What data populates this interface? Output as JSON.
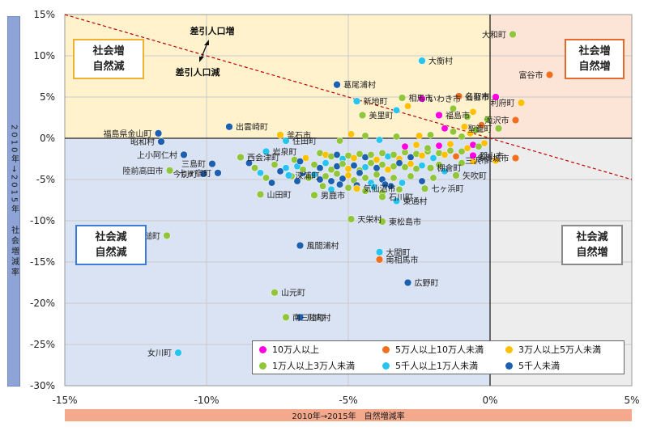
{
  "chart_data": {
    "type": "scatter",
    "xlabel": "2010年→2015年　自然増減率",
    "ylabel": "2010年→2015年　社会増減率",
    "xlim": [
      -15,
      5
    ],
    "ylim": [
      -30,
      15
    ],
    "x_ticks": [
      "-15%",
      "-10%",
      "-5%",
      "0%",
      "5%"
    ],
    "y_ticks": [
      "15%",
      "10%",
      "5%",
      "0%",
      "-5%",
      "-10%",
      "-15%",
      "-20%",
      "-25%",
      "-30%"
    ],
    "quadrants": {
      "top_left": "社会増\n自然減",
      "top_right": "社会増\n自然増",
      "bottom_left": "社会減\n自然減",
      "bottom_right": "社会減\n自然増"
    },
    "trend_annotation": {
      "upper": "差引人口増",
      "lower": "差引人口減"
    },
    "legend": [
      {
        "name": "10万人以上",
        "color": "#ff00e0"
      },
      {
        "name": "5万人以上10万人未満",
        "color": "#f07020"
      },
      {
        "name": "3万人以上5万人未満",
        "color": "#ffc000"
      },
      {
        "name": "1万人以上3万人未満",
        "color": "#92c63a"
      },
      {
        "name": "5千人以上1万人未満",
        "color": "#28c4f0"
      },
      {
        "name": "5千人未満",
        "color": "#1e60b0"
      }
    ],
    "labeled_points": [
      {
        "label": "大和町",
        "x": 0.8,
        "y": 12.6,
        "group": 3
      },
      {
        "label": "富谷市",
        "x": 2.1,
        "y": 7.7,
        "group": 1
      },
      {
        "label": "大衡村",
        "x": -2.4,
        "y": 9.4,
        "group": 4
      },
      {
        "label": "名取市",
        "x": -1.1,
        "y": 5.1,
        "group": 1
      },
      {
        "label": "仙台市",
        "x": 0.2,
        "y": 5.0,
        "group": 0
      },
      {
        "label": "利府町",
        "x": 1.1,
        "y": 4.3,
        "group": 2
      },
      {
        "label": "滝沢市",
        "x": 0.9,
        "y": 2.2,
        "group": 1
      },
      {
        "label": "聖籠町",
        "x": 0.3,
        "y": 1.2,
        "group": 3
      },
      {
        "label": "相馬市",
        "x": -3.1,
        "y": 4.9,
        "group": 3
      },
      {
        "label": "いわき市",
        "x": -2.4,
        "y": 4.8,
        "group": 0
      },
      {
        "label": "葛尾浦村",
        "x": -5.4,
        "y": 6.5,
        "group": 5
      },
      {
        "label": "新地町",
        "x": -4.7,
        "y": 4.5,
        "group": 4
      },
      {
        "label": "美里町",
        "x": -4.5,
        "y": 2.8,
        "group": 3
      },
      {
        "label": "福島市",
        "x": -1.8,
        "y": 2.8,
        "group": 0
      },
      {
        "label": "釜石市",
        "x": -7.4,
        "y": 0.4,
        "group": 2
      },
      {
        "label": "住田町",
        "x": -7.2,
        "y": -0.3,
        "group": 4
      },
      {
        "label": "出雲崎町",
        "x": -9.2,
        "y": 1.4,
        "group": 5
      },
      {
        "label": "福島県金山町",
        "x": -11.7,
        "y": 0.6,
        "group": 5
      },
      {
        "label": "昭和村",
        "x": -11.6,
        "y": -0.4,
        "group": 5
      },
      {
        "label": "上小阿仁村",
        "x": -10.8,
        "y": -2.0,
        "group": 5
      },
      {
        "label": "西会津町",
        "x": -8.8,
        "y": -2.3,
        "group": 3
      },
      {
        "label": "岩泉町",
        "x": -7.9,
        "y": -1.6,
        "group": 4
      },
      {
        "label": "三島町",
        "x": -9.8,
        "y": -3.1,
        "group": 5
      },
      {
        "label": "陸前高田市",
        "x": -11.3,
        "y": -3.9,
        "group": 3
      },
      {
        "label": "今別町",
        "x": -10.1,
        "y": -4.3,
        "group": 5
      },
      {
        "label": "七ヶ宿町",
        "x": -9.6,
        "y": -4.2,
        "group": 5
      },
      {
        "label": "深浦町",
        "x": -7.1,
        "y": -4.5,
        "group": 4
      },
      {
        "label": "山田町",
        "x": -8.1,
        "y": -6.8,
        "group": 3
      },
      {
        "label": "男鹿市",
        "x": -6.2,
        "y": -6.9,
        "group": 3
      },
      {
        "label": "気仙沼市",
        "x": -4.7,
        "y": -6.1,
        "group": 2
      },
      {
        "label": "石川町",
        "x": -3.8,
        "y": -7.1,
        "group": 3
      },
      {
        "label": "天栄村",
        "x": -4.9,
        "y": -9.8,
        "group": 3
      },
      {
        "label": "東通村",
        "x": -3.3,
        "y": -7.6,
        "group": 4
      },
      {
        "label": "七ヶ浜町",
        "x": -2.3,
        "y": -6.1,
        "group": 3
      },
      {
        "label": "棚倉町",
        "x": -2.1,
        "y": -3.6,
        "group": 3
      },
      {
        "label": "矢吹町",
        "x": -1.2,
        "y": -4.5,
        "group": 3
      },
      {
        "label": "郡山市",
        "x": -0.6,
        "y": -2.1,
        "group": 0
      },
      {
        "label": "多賀城市",
        "x": 0.9,
        "y": -2.4,
        "group": 1
      },
      {
        "label": "三沢市",
        "x": 0.2,
        "y": -2.7,
        "group": 2
      },
      {
        "label": "東松島市",
        "x": -3.8,
        "y": -10.1,
        "group": 3
      },
      {
        "label": "大間町",
        "x": -3.9,
        "y": -13.8,
        "group": 4
      },
      {
        "label": "南相馬市",
        "x": -3.9,
        "y": -14.7,
        "group": 1
      },
      {
        "label": "広野町",
        "x": -2.9,
        "y": -17.5,
        "group": 5
      },
      {
        "label": "大槌町",
        "x": -11.4,
        "y": -11.8,
        "group": 3
      },
      {
        "label": "風間浦村",
        "x": -6.7,
        "y": -13.0,
        "group": 5
      },
      {
        "label": "山元町",
        "x": -7.6,
        "y": -18.7,
        "group": 3
      },
      {
        "label": "川内村",
        "x": -6.7,
        "y": -21.7,
        "group": 5
      },
      {
        "label": "南三陸町",
        "x": -7.2,
        "y": -21.7,
        "group": 3
      },
      {
        "label": "女川町",
        "x": -11.0,
        "y": -26.0,
        "group": 4
      }
    ],
    "unlabeled_points": [
      [
        -6.0,
        -1.8,
        3
      ],
      [
        -5.8,
        -2.0,
        2
      ],
      [
        -5.6,
        -2.2,
        3
      ],
      [
        -5.4,
        -2.0,
        5
      ],
      [
        -5.2,
        -2.5,
        4
      ],
      [
        -5.0,
        -2.1,
        3
      ],
      [
        -4.8,
        -2.4,
        2
      ],
      [
        -4.6,
        -1.9,
        3
      ],
      [
        -4.4,
        -2.3,
        5
      ],
      [
        -4.2,
        -2.0,
        3
      ],
      [
        -4.0,
        -2.6,
        2
      ],
      [
        -3.8,
        -1.8,
        3
      ],
      [
        -3.6,
        -2.2,
        4
      ],
      [
        -3.4,
        -2.0,
        3
      ],
      [
        -3.2,
        -2.5,
        2
      ],
      [
        -3.0,
        -1.7,
        3
      ],
      [
        -2.8,
        -2.3,
        5
      ],
      [
        -2.6,
        -1.9,
        3
      ],
      [
        -2.4,
        -2.1,
        2
      ],
      [
        -2.2,
        -1.6,
        3
      ],
      [
        -2.0,
        -2.4,
        4
      ],
      [
        -1.8,
        -1.8,
        3
      ],
      [
        -1.6,
        -2.0,
        2
      ],
      [
        -1.4,
        -1.5,
        3
      ],
      [
        -1.2,
        -2.2,
        1
      ],
      [
        -1.0,
        -1.6,
        3
      ],
      [
        -0.8,
        -1.2,
        2
      ],
      [
        -0.6,
        -0.8,
        0
      ],
      [
        -0.4,
        -1.0,
        3
      ],
      [
        -0.2,
        -0.6,
        2
      ],
      [
        -6.2,
        -3.2,
        3
      ],
      [
        -6.0,
        -3.6,
        5
      ],
      [
        -5.8,
        -3.0,
        4
      ],
      [
        -5.6,
        -3.8,
        3
      ],
      [
        -5.4,
        -3.4,
        5
      ],
      [
        -5.2,
        -3.1,
        3
      ],
      [
        -5.0,
        -3.7,
        2
      ],
      [
        -4.8,
        -3.3,
        5
      ],
      [
        -4.6,
        -3.9,
        3
      ],
      [
        -4.4,
        -3.5,
        4
      ],
      [
        -4.2,
        -3.0,
        3
      ],
      [
        -4.0,
        -3.6,
        5
      ],
      [
        -3.8,
        -3.2,
        3
      ],
      [
        -3.6,
        -3.8,
        2
      ],
      [
        -3.4,
        -3.4,
        3
      ],
      [
        -3.2,
        -3.0,
        5
      ],
      [
        -3.0,
        -3.5,
        3
      ],
      [
        -2.8,
        -3.1,
        2
      ],
      [
        -2.6,
        -3.7,
        3
      ],
      [
        -2.4,
        -3.3,
        4
      ],
      [
        -6.6,
        -4.2,
        5
      ],
      [
        -6.4,
        -4.8,
        3
      ],
      [
        -6.2,
        -4.4,
        4
      ],
      [
        -6.0,
        -5.0,
        5
      ],
      [
        -5.8,
        -4.6,
        3
      ],
      [
        -5.6,
        -5.2,
        5
      ],
      [
        -5.4,
        -4.3,
        3
      ],
      [
        -5.2,
        -4.9,
        5
      ],
      [
        -5.0,
        -4.5,
        2
      ],
      [
        -4.8,
        -5.1,
        3
      ],
      [
        -4.6,
        -4.2,
        5
      ],
      [
        -4.4,
        -4.8,
        3
      ],
      [
        -4.2,
        -5.4,
        4
      ],
      [
        -4.0,
        -4.4,
        3
      ],
      [
        -3.8,
        -5.0,
        5
      ],
      [
        -6.9,
        -2.6,
        3
      ],
      [
        -6.8,
        -3.4,
        4
      ],
      [
        -6.7,
        -2.8,
        5
      ],
      [
        -6.6,
        -3.8,
        3
      ],
      [
        -6.5,
        -2.4,
        2
      ],
      [
        -7.6,
        -3.2,
        3
      ],
      [
        -7.4,
        -4.0,
        5
      ],
      [
        -7.2,
        -3.6,
        4
      ],
      [
        -7.0,
        -4.6,
        3
      ],
      [
        -6.8,
        -5.2,
        5
      ],
      [
        -5.9,
        -5.8,
        3
      ],
      [
        -5.6,
        -6.2,
        4
      ],
      [
        -5.3,
        -5.6,
        5
      ],
      [
        -5.0,
        -6.0,
        3
      ],
      [
        -4.7,
        -5.7,
        5
      ],
      [
        -4.4,
        -6.4,
        3
      ],
      [
        -4.1,
        -5.9,
        4
      ],
      [
        -3.8,
        -6.6,
        3
      ],
      [
        -3.5,
        -5.8,
        5
      ],
      [
        -3.2,
        -6.2,
        3
      ],
      [
        -3.0,
        -1.0,
        0
      ],
      [
        -2.6,
        -0.8,
        2
      ],
      [
        -2.2,
        -1.2,
        3
      ],
      [
        -1.8,
        -0.9,
        0
      ],
      [
        -1.4,
        -0.7,
        2
      ],
      [
        -1.0,
        0.2,
        3
      ],
      [
        -0.7,
        0.6,
        2
      ],
      [
        -0.5,
        1.0,
        3
      ],
      [
        -0.3,
        1.6,
        1
      ],
      [
        -0.1,
        2.3,
        3
      ],
      [
        -0.9,
        1.4,
        2
      ],
      [
        -1.3,
        0.8,
        3
      ],
      [
        -1.6,
        1.2,
        0
      ],
      [
        -2.1,
        0.4,
        3
      ],
      [
        -2.5,
        0.3,
        2
      ],
      [
        -3.3,
        0.2,
        3
      ],
      [
        -3.9,
        -0.2,
        4
      ],
      [
        -4.4,
        0.3,
        3
      ],
      [
        -4.9,
        0.5,
        2
      ],
      [
        -5.3,
        -0.3,
        3
      ],
      [
        -2.0,
        -4.8,
        3
      ],
      [
        -1.6,
        -4.0,
        4
      ],
      [
        -1.0,
        -3.0,
        3
      ],
      [
        -0.6,
        -2.8,
        2
      ],
      [
        -1.8,
        -3.2,
        3
      ],
      [
        -2.4,
        -5.2,
        5
      ],
      [
        -2.8,
        -4.6,
        3
      ],
      [
        -3.1,
        -5.4,
        4
      ],
      [
        -3.4,
        -4.8,
        3
      ],
      [
        -3.7,
        -5.6,
        5
      ],
      [
        -7.9,
        -4.8,
        3
      ],
      [
        -7.7,
        -5.4,
        5
      ],
      [
        -8.1,
        -4.2,
        4
      ],
      [
        -8.3,
        -3.6,
        3
      ],
      [
        -8.5,
        -3.0,
        5
      ],
      [
        -3.3,
        3.4,
        4
      ],
      [
        -2.9,
        3.9,
        2
      ],
      [
        -1.3,
        3.6,
        3
      ],
      [
        -0.6,
        3.2,
        2
      ],
      [
        -0.8,
        2.6,
        3
      ]
    ]
  }
}
